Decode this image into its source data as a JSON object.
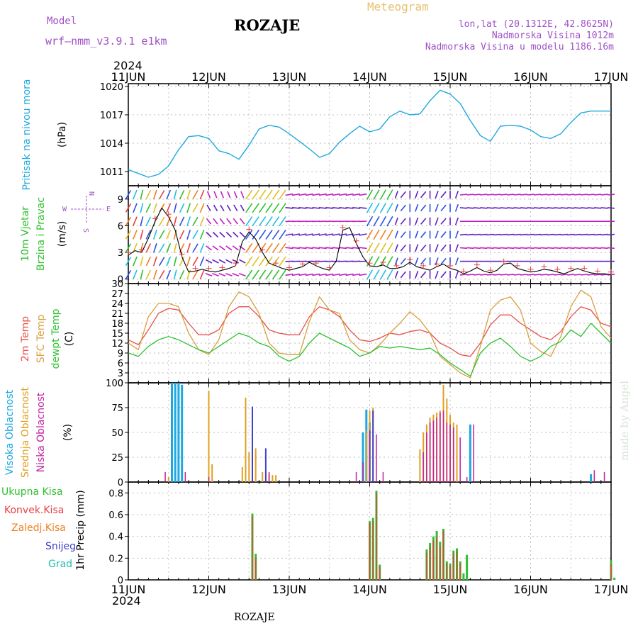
{
  "header": {
    "model_label": "Model",
    "model_name": "wrf—nmm_v3.9.1  e1km",
    "title": "ROZAJE",
    "meteogram_label": "Meteogram",
    "lonlat": "lon,lat (20.1312E, 42.8625N)",
    "altitude": "Nadmorska Visina 1012m",
    "model_altitude": "Nadmorska Visina u modelu 1186.16m",
    "year_top": "2024",
    "year_bottom": "2024",
    "footer_station": "ROZAJE",
    "watermark": "made by Angel"
  },
  "colors": {
    "pressure": "#1ea8e0",
    "temp2m": "#e8504a",
    "sfc_temp": "#d8a040",
    "dewpt": "#30c030",
    "wind_speed": "#000000",
    "wind_dir": "#e84040",
    "high_cloud": "#1ea8e0",
    "mid_cloud": "#e0a020",
    "low_cloud": "#c020a0",
    "total_precip": "#30c030",
    "conv_precip": "#e84040",
    "frozen_precip": "#f08020",
    "snow": "#4040d0",
    "hail": "#20c0b0"
  },
  "chart_data": {
    "type": "line",
    "x_ticks": [
      "11JUN",
      "12JUN",
      "13JUN",
      "14JUN",
      "15JUN",
      "16JUN",
      "17JUN"
    ],
    "x_range_hours": [
      0,
      144
    ],
    "panels": {
      "pressure": {
        "ylabel_1": "Pritisak na nivou mora",
        "ylabel_2": "(hPa)",
        "yticks": [
          1011,
          1014,
          1017,
          1020
        ],
        "ylim": [
          1009.5,
          1020.3
        ],
        "series": [
          {
            "x": [
              0,
              3,
              6,
              9,
              12,
              15,
              18,
              21,
              24,
              27,
              30,
              33,
              36,
              39,
              42,
              45,
              48,
              51,
              54,
              57,
              60,
              63,
              66,
              69,
              72,
              75,
              78,
              81,
              84,
              87,
              90,
              93,
              96,
              99,
              102,
              105,
              108,
              111,
              114,
              117,
              120,
              123,
              126,
              129,
              132,
              135,
              138,
              141,
              144
            ],
            "values": [
              1011.2,
              1010.8,
              1010.4,
              1010.7,
              1011.6,
              1013.3,
              1014.7,
              1014.8,
              1014.5,
              1013.2,
              1012.9,
              1012.3,
              1013.8,
              1015.5,
              1015.9,
              1015.7,
              1015.0,
              1014.2,
              1013.4,
              1012.5,
              1012.9,
              1014.1,
              1015.0,
              1015.8,
              1015.2,
              1015.5,
              1016.8,
              1017.4,
              1017.0,
              1017.1,
              1018.5,
              1019.6,
              1019.2,
              1018.2,
              1016.4,
              1014.8,
              1014.2,
              1015.8,
              1015.9,
              1015.8,
              1015.4,
              1014.7,
              1014.5,
              1015.0,
              1016.2,
              1017.2,
              1017.4,
              1017.4,
              1017.4
            ]
          }
        ]
      },
      "wind": {
        "ylabel_1": "10m Vjetar",
        "ylabel_2": "Brzina i Pravac",
        "ylabel_3": "(m/s)",
        "compass_w": "W",
        "compass_e": "E",
        "compass_n": "N",
        "compass_s": "S",
        "yticks": [
          0,
          3,
          6,
          9
        ],
        "ylim": [
          -0.5,
          10.5
        ],
        "series": [
          {
            "name": "speed",
            "x": [
              0,
              2,
              4,
              6,
              8,
              10,
              12,
              14,
              16,
              18,
              20,
              22,
              24,
              26,
              28,
              30,
              32,
              34,
              36,
              38,
              40,
              42,
              44,
              46,
              48,
              50,
              52,
              54,
              56,
              58,
              60,
              62,
              64,
              66,
              68,
              70,
              72,
              74,
              76,
              78,
              80,
              82,
              84,
              86,
              88,
              90,
              92,
              94,
              96,
              98,
              100,
              102,
              104,
              106,
              108,
              110,
              112,
              114,
              116,
              118,
              120,
              122,
              124,
              126,
              128,
              130,
              132,
              134,
              136,
              138,
              140,
              142,
              144
            ],
            "values": [
              2.7,
              3.2,
              3.0,
              4.6,
              6.5,
              8.0,
              7.0,
              5.5,
              2.5,
              0.8,
              0.9,
              1.1,
              0.9,
              0.8,
              1.0,
              1.2,
              1.5,
              4.2,
              5.3,
              4.5,
              3.0,
              1.8,
              1.5,
              1.2,
              1.0,
              1.2,
              1.4,
              1.9,
              1.5,
              1.2,
              1.0,
              2.0,
              5.5,
              5.8,
              4.0,
              2.5,
              1.5,
              1.4,
              1.6,
              1.2,
              1.2,
              1.4,
              1.9,
              1.4,
              1.2,
              1.0,
              1.4,
              1.7,
              1.2,
              1.0,
              0.6,
              0.9,
              1.3,
              0.9,
              0.7,
              1.0,
              1.7,
              1.8,
              1.2,
              1.0,
              0.8,
              0.9,
              1.1,
              1.0,
              0.8,
              0.6,
              0.9,
              1.2,
              0.9,
              0.7,
              0.6,
              0.6,
              0.5
            ]
          }
        ]
      },
      "temperature": {
        "ylabel_1": "2m Temp",
        "ylabel_2": "SFC Temp",
        "ylabel_3": "dewpt Temp",
        "ylabel_4": "(C)",
        "yticks": [
          0,
          3,
          6,
          9,
          12,
          15,
          18,
          21,
          24,
          27,
          30
        ],
        "ylim": [
          0,
          30
        ],
        "x": [
          0,
          3,
          6,
          9,
          12,
          15,
          18,
          21,
          24,
          27,
          30,
          33,
          36,
          39,
          42,
          45,
          48,
          51,
          54,
          57,
          60,
          63,
          66,
          69,
          72,
          75,
          78,
          81,
          84,
          87,
          90,
          93,
          96,
          99,
          102,
          105,
          108,
          111,
          114,
          117,
          120,
          123,
          126,
          129,
          132,
          135,
          138,
          141,
          144
        ],
        "series": [
          {
            "name": "2m",
            "values": [
              13,
              11.5,
              16,
              21,
              22.5,
              22,
              18,
              14.5,
              14.5,
              16,
              21,
              23,
              23,
              20,
              16,
              15,
              14.5,
              14.5,
              20,
              23,
              22,
              20,
              16,
              13,
              12.5,
              13.5,
              15,
              14.5,
              15.5,
              16,
              15,
              12,
              10.5,
              8.5,
              8,
              12,
              17.5,
              20.5,
              20.5,
              18,
              16,
              14,
              13,
              15.5,
              20,
              23,
              22,
              18,
              17
            ]
          },
          {
            "name": "sfc",
            "values": [
              12,
              10,
              20,
              24,
              24,
              23,
              15,
              10,
              8.5,
              13,
              23,
              27.5,
              26,
              21,
              12,
              9,
              8.5,
              8.5,
              18.5,
              26,
              22,
              21,
              13,
              10,
              9,
              11.5,
              15,
              18,
              21.5,
              19,
              15,
              8,
              5.5,
              3,
              1.5,
              11,
              22,
              25,
              26,
              22,
              12,
              9.5,
              8,
              14,
              23,
              28,
              26,
              17,
              13.5
            ]
          },
          {
            "name": "dewpt",
            "values": [
              9,
              8,
              11,
              13,
              14,
              13,
              11.5,
              10,
              9,
              11,
              13,
              15,
              14,
              12,
              11,
              8,
              6.5,
              8,
              12,
              15,
              13.5,
              12,
              10.5,
              8,
              9,
              11,
              10.5,
              11,
              10.5,
              10,
              10.5,
              8.5,
              6,
              4,
              2,
              9,
              12,
              13.5,
              11,
              8,
              6.5,
              8,
              11,
              12.5,
              16,
              14,
              18,
              15,
              12
            ]
          }
        ]
      },
      "clouds": {
        "ylabel_1": "Visoka Oblacnost",
        "ylabel_2": "Srednja Oblacnost",
        "ylabel_3": "Niska Oblacnost",
        "ylabel_4": "(%)",
        "yticks": [
          0,
          25,
          50,
          75,
          100
        ],
        "ylim": [
          0,
          100
        ],
        "series": [
          {
            "name": "high",
            "points": [
              [
                13,
                100
              ],
              [
                14,
                100
              ],
              [
                15,
                100
              ],
              [
                16,
                98
              ],
              [
                70,
                50
              ],
              [
                71,
                73
              ],
              [
                72,
                60
              ],
              [
                102,
                58
              ],
              [
                138,
                8
              ]
            ]
          },
          {
            "name": "mid",
            "points": [
              [
                12,
                5
              ],
              [
                24,
                92
              ],
              [
                25,
                18
              ],
              [
                34,
                15
              ],
              [
                35,
                85
              ],
              [
                36,
                30
              ],
              [
                38,
                34
              ],
              [
                40,
                10
              ],
              [
                41,
                10
              ],
              [
                42,
                8
              ],
              [
                43,
                7
              ],
              [
                44,
                7
              ],
              [
                71,
                52
              ],
              [
                72,
                72
              ],
              [
                73,
                75
              ],
              [
                87,
                33
              ],
              [
                88,
                50
              ],
              [
                89,
                58
              ],
              [
                90,
                65
              ],
              [
                91,
                68
              ],
              [
                92,
                70
              ],
              [
                93,
                72
              ],
              [
                94,
                98
              ],
              [
                95,
                84
              ],
              [
                96,
                68
              ],
              [
                97,
                60
              ],
              [
                98,
                58
              ]
            ]
          },
          {
            "name": "low",
            "points": [
              [
                11,
                10
              ],
              [
                17,
                10
              ],
              [
                24,
                5
              ],
              [
                37,
                76
              ],
              [
                42,
                10
              ],
              [
                68,
                10
              ],
              [
                70,
                20
              ],
              [
                72,
                52
              ],
              [
                74,
                48
              ],
              [
                76,
                10
              ],
              [
                88,
                30
              ],
              [
                89,
                50
              ],
              [
                90,
                60
              ],
              [
                91,
                62
              ],
              [
                92,
                65
              ],
              [
                93,
                70
              ],
              [
                94,
                72
              ],
              [
                95,
                60
              ],
              [
                96,
                58
              ],
              [
                97,
                55
              ],
              [
                99,
                45
              ],
              [
                101,
                5
              ],
              [
                103,
                58
              ],
              [
                139,
                12
              ],
              [
                142,
                10
              ]
            ]
          },
          {
            "name": "blue",
            "points": [
              [
                37,
                76
              ],
              [
                41,
                34
              ],
              [
                73,
                72
              ]
            ]
          }
        ]
      },
      "precip": {
        "ylabel_1": "Ukupna  Kisa",
        "ylabel_2": "Konvek.Kisa",
        "ylabel_3": "Zaledj.Kisa",
        "ylabel_4": "Snijeg",
        "ylabel_5": "Grad",
        "ylabel_6": "1hr Precip (mm)",
        "yticks": [
          0,
          0.2,
          0.4,
          0.6,
          0.8
        ],
        "ylim": [
          0,
          0.9
        ],
        "series": [
          {
            "name": "total",
            "points": [
              [
                37,
                0.61
              ],
              [
                38,
                0.24
              ],
              [
                72,
                0.54
              ],
              [
                73,
                0.57
              ],
              [
                74,
                0.82
              ],
              [
                75,
                0.14
              ],
              [
                89,
                0.28
              ],
              [
                90,
                0.34
              ],
              [
                91,
                0.4
              ],
              [
                92,
                0.45
              ],
              [
                93,
                0.35
              ],
              [
                94,
                0.47
              ],
              [
                95,
                0.17
              ],
              [
                96,
                0.15
              ],
              [
                97,
                0.27
              ],
              [
                98,
                0.29
              ],
              [
                99,
                0.17
              ],
              [
                100,
                0.06
              ],
              [
                101,
                0.23
              ],
              [
                144,
                0.18
              ],
              [
                145,
                0.02
              ]
            ]
          },
          {
            "name": "convective",
            "points": [
              [
                37,
                0.58
              ],
              [
                38,
                0.2
              ],
              [
                72,
                0.52
              ],
              [
                73,
                0.54
              ],
              [
                74,
                0.8
              ],
              [
                75,
                0.12
              ],
              [
                89,
                0.25
              ],
              [
                90,
                0.3
              ],
              [
                91,
                0.36
              ],
              [
                92,
                0.4
              ],
              [
                93,
                0.31
              ],
              [
                94,
                0.45
              ],
              [
                95,
                0.15
              ],
              [
                96,
                0.13
              ],
              [
                97,
                0.24
              ],
              [
                98,
                0.26
              ],
              [
                99,
                0.15
              ],
              [
                144,
                0.15
              ]
            ]
          }
        ]
      }
    }
  }
}
